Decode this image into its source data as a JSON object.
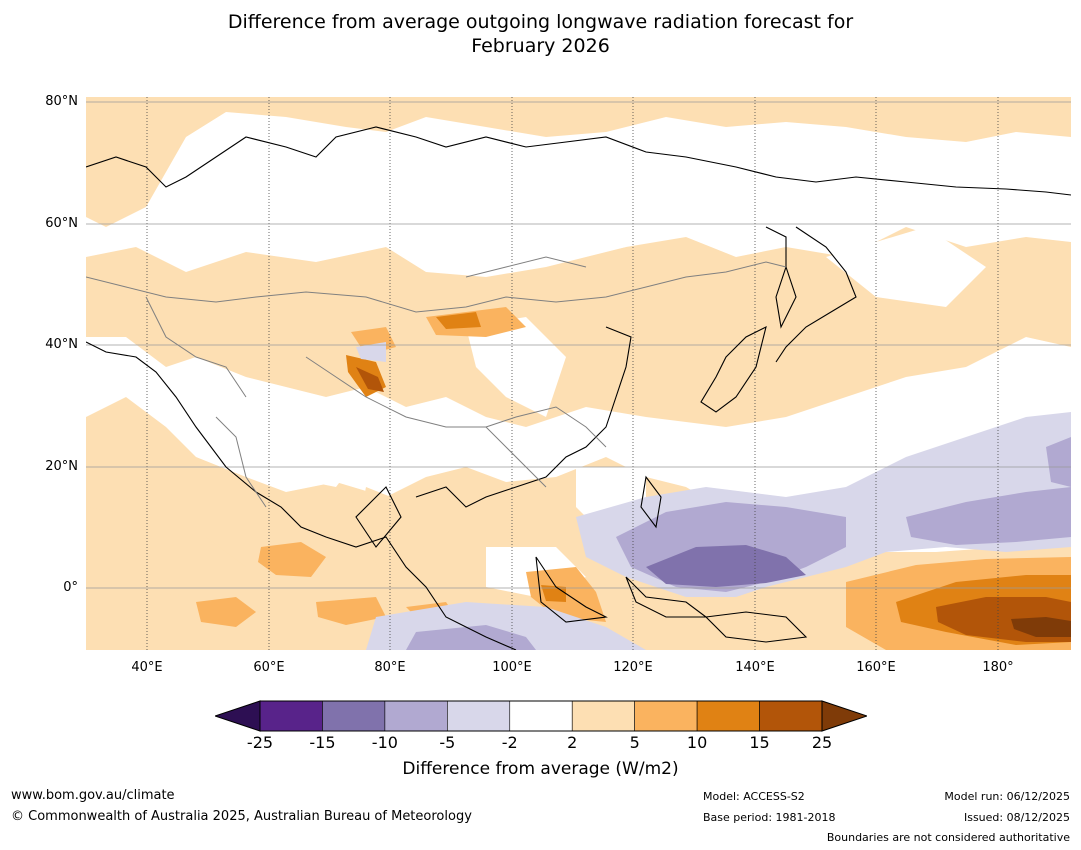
{
  "title": {
    "line1": "Difference from average outgoing longwave radiation forecast for",
    "line2": "February 2026"
  },
  "map": {
    "lat_labels": [
      "80°N",
      "60°N",
      "40°N",
      "20°N",
      "0°"
    ],
    "lon_labels": [
      "40°E",
      "60°E",
      "80°E",
      "100°E",
      "120°E",
      "140°E",
      "160°E",
      "180°"
    ],
    "lon_range": [
      30,
      192
    ],
    "lat_range": [
      -10,
      81
    ]
  },
  "colorbar": {
    "ticks": [
      "-25",
      "-15",
      "-10",
      "-5",
      "-2",
      "2",
      "5",
      "10",
      "15",
      "25"
    ],
    "colors": [
      "#2d0f53",
      "#58238a",
      "#8072ac",
      "#b1a9d1",
      "#d8d7ea",
      "#ffffff",
      "#fddfb3",
      "#fab35f",
      "#e08214",
      "#b25509",
      "#7f3b08"
    ],
    "label": "Difference from average (W/m2)"
  },
  "footer": {
    "website": "www.bom.gov.au/climate",
    "copyright": "© Commonwealth of Australia 2025, Australian Bureau of Meteorology",
    "model": "Model: ACCESS-S2",
    "base_period": "Base period: 1981-2018",
    "model_run": "Model run: 06/12/2025",
    "issued": "Issued: 08/12/2025",
    "disclaimer": "Boundaries are not considered authoritative"
  }
}
